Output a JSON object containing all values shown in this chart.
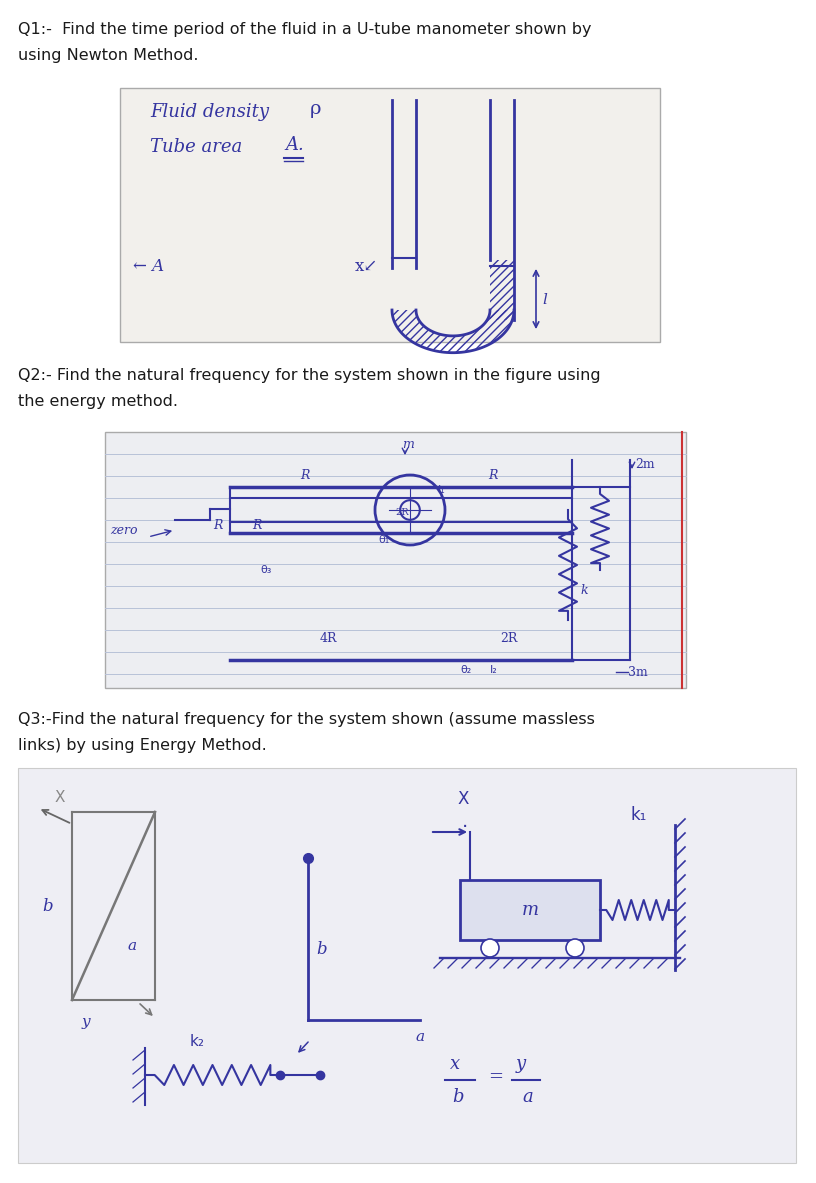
{
  "bg_color": "#ffffff",
  "page_width": 8.16,
  "page_height": 11.83,
  "q1_text_line1": "Q1:-  Find the time period of the fluid in a U-tube manometer shown by",
  "q1_text_line2": "using Newton Method.",
  "q2_text_line1": "Q2:- Find the natural frequency for the system shown in the figure using",
  "q2_text_line2": "the energy method.",
  "q3_text_line1": "Q3:-Find the natural frequency for the system shown (assume massless",
  "q3_text_line2": "links) by using Energy Method.",
  "text_color": "#1a1a1a",
  "pen_color": "#3535a0",
  "pen_lw": 1.5,
  "nb_bg": "#edeef2",
  "nb_line_color": "#b8c2d8",
  "scan_bg1": "#f2f0ec",
  "scan_bg2": "#eeeef4",
  "red_line": "#cc3333",
  "hatch_color": "#5555aa"
}
